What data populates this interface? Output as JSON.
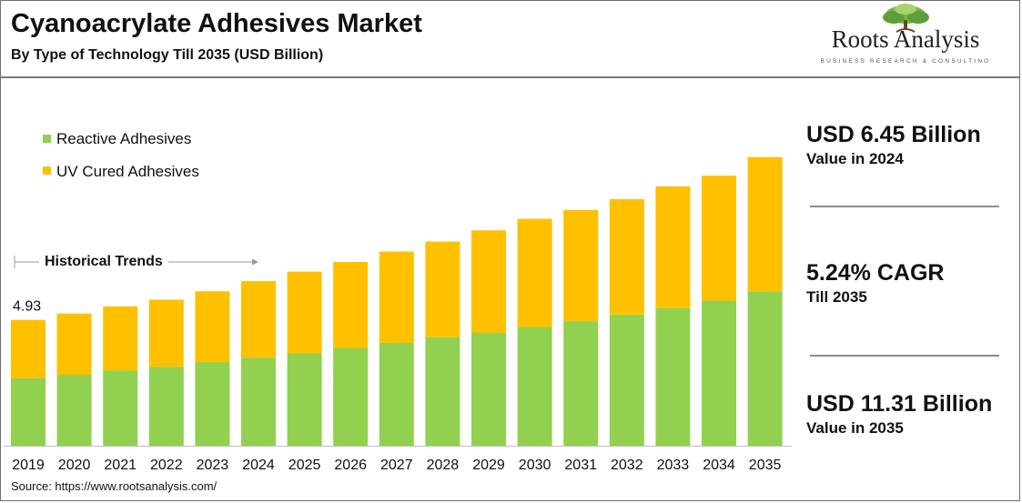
{
  "header": {
    "title": "Cyanoacrylate Adhesives Market",
    "subtitle": "By Type of Technology Till 2035 (USD Billion)"
  },
  "logo": {
    "name": "Roots Analysis",
    "tagline": "BUSINESS RESEARCH & CONSULTING"
  },
  "kpis": [
    {
      "value": "USD 6.45 Billion",
      "label": "Value in 2024"
    },
    {
      "value": "5.24% CAGR",
      "label": "Till 2035"
    },
    {
      "value": "USD 11.31 Billion",
      "label": "Value in 2035"
    }
  ],
  "source": "Source: https://www.rootsanalysis.com/",
  "colors": {
    "reactive": "#92d050",
    "uv": "#ffc000",
    "axis": "#bfbfbf",
    "rule": "#8c8c8c"
  },
  "chart_data": {
    "type": "bar",
    "stacked": true,
    "categories": [
      "2019",
      "2020",
      "2021",
      "2022",
      "2023",
      "2024",
      "2025",
      "2026",
      "2027",
      "2028",
      "2029",
      "2030",
      "2031",
      "2032",
      "2033",
      "2034",
      "2035"
    ],
    "series": [
      {
        "name": "Reactive Adhesives",
        "values": [
          2.65,
          2.78,
          2.95,
          3.09,
          3.28,
          3.45,
          3.62,
          3.83,
          4.03,
          4.25,
          4.42,
          4.65,
          4.88,
          5.14,
          5.39,
          5.69,
          6.05
        ]
      },
      {
        "name": "UV Cured Adhesives",
        "values": [
          2.28,
          2.4,
          2.51,
          2.63,
          2.77,
          3.0,
          3.2,
          3.37,
          3.58,
          3.75,
          4.02,
          4.24,
          4.36,
          4.52,
          4.77,
          4.89,
          5.26
        ]
      }
    ],
    "totals": [
      4.93,
      5.18,
      5.46,
      5.72,
      6.05,
      6.45,
      6.82,
      7.2,
      7.61,
      8.0,
      8.44,
      8.89,
      9.24,
      9.66,
      10.16,
      10.58,
      11.31
    ],
    "data_labels": [
      {
        "category": "2019",
        "text": "4.93"
      }
    ],
    "annotation": "Historical Trends",
    "annotation_span": [
      "2019",
      "2024"
    ],
    "ylim": [
      0,
      14.4
    ],
    "grid": false,
    "legend_position": "top-left"
  }
}
